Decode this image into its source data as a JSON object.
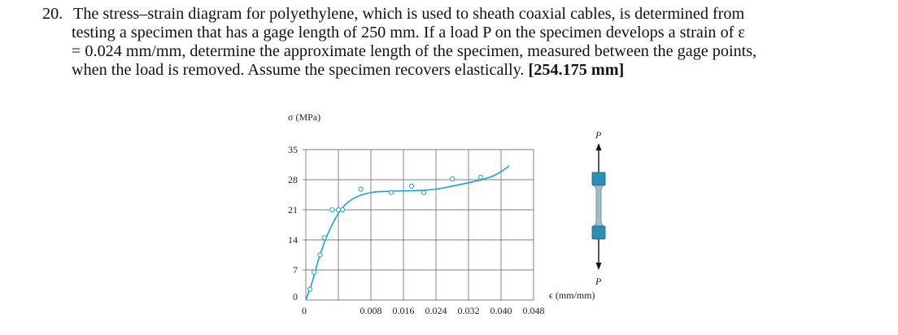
{
  "problem": {
    "number": "20.",
    "lines": [
      "The stress–strain diagram for polyethylene, which is used to sheath coaxial cables, is determined from",
      "testing a specimen that has a gage length of 250 mm. If a load P on the specimen develops a strain of ε",
      "= 0.024 mm/mm, determine the approximate length of the specimen, measured between the gage points,",
      "when the load is removed. Assume the specimen recovers elastically."
    ],
    "answer": "[254.175 mm]"
  },
  "colors": {
    "curve": "#1aa3d8",
    "specimen": "#2c8fb8",
    "grid": "#555555"
  },
  "specimen_labels": {
    "top": "P",
    "bottom": "P"
  },
  "chart_data": {
    "type": "line",
    "ylabel": "σ (MPa)",
    "xlabel": "ϵ (mm/mm)",
    "xlim": [
      0,
      0.056
    ],
    "ylim": [
      0,
      35
    ],
    "x_ticks": [
      "0",
      "0.008",
      "0.016",
      "0.024",
      "0.032",
      "0.040",
      "0.048"
    ],
    "y_ticks": [
      "0",
      "7",
      "14",
      "21",
      "28",
      "35"
    ],
    "grid": true,
    "series": [
      {
        "type": "line",
        "x": [
          0,
          0.0015,
          0.003,
          0.005,
          0.007,
          0.009,
          0.012,
          0.016,
          0.02,
          0.024,
          0.028,
          0.032,
          0.036,
          0.04,
          0.044,
          0.047,
          0.05
        ],
        "y": [
          0,
          4,
          9,
          14.5,
          18.5,
          21.5,
          23.8,
          25,
          25.3,
          25.4,
          25.5,
          25.8,
          26.5,
          27.3,
          28.2,
          29.3,
          31.2
        ]
      },
      {
        "type": "scatter",
        "x": [
          0.001,
          0.002,
          0.0035,
          0.0045,
          0.0065,
          0.008,
          0.009,
          0.0135,
          0.021,
          0.026,
          0.029,
          0.036,
          0.043
        ],
        "y": [
          2.5,
          6.5,
          10.5,
          14.5,
          21,
          21,
          21,
          25.8,
          25,
          26.5,
          25,
          28.2,
          28.6
        ]
      }
    ]
  }
}
